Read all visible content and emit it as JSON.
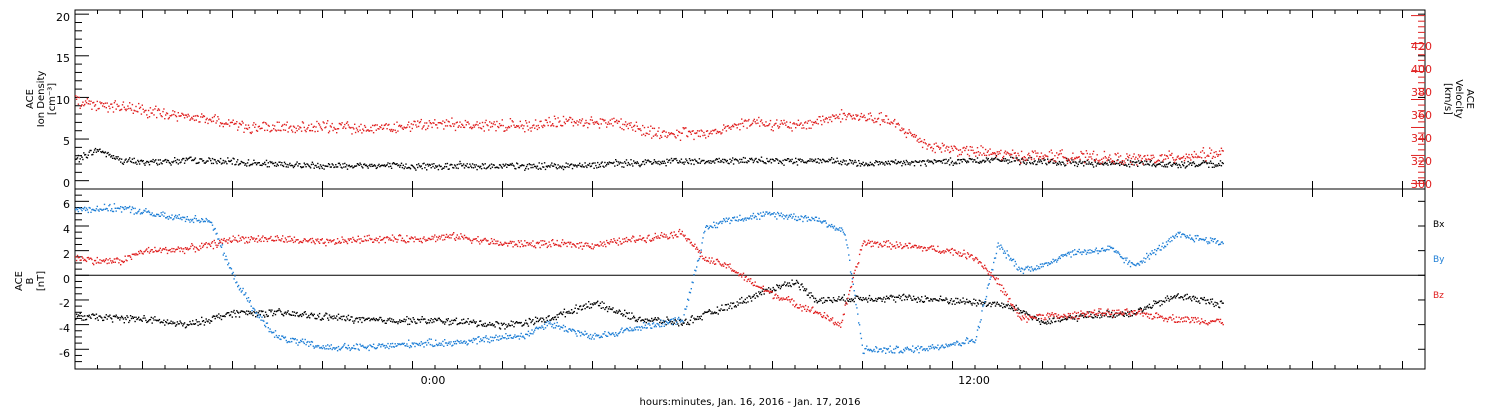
{
  "colors": {
    "black": "#000000",
    "red": "#e02020",
    "blue": "#1f7fd6"
  },
  "chart_data": [
    {
      "type": "scatter",
      "panel": "top",
      "ylabel": [
        "ACE",
        "Ion Density",
        "[cm⁻³]"
      ],
      "ylim": [
        -1,
        20.5
      ],
      "yticks": [
        "0",
        "5",
        "10",
        "15",
        "20"
      ],
      "ylabel_right": [
        "ACE",
        "Velocity",
        "[km/s]"
      ],
      "ylim_right": [
        296,
        424
      ],
      "yticks_right": [
        "300",
        "320",
        "340",
        "360",
        "380",
        "400",
        "420"
      ],
      "series": [
        {
          "name": "",
          "color": "black",
          "axis": "left",
          "keypoints": [
            [
              -9.5,
              2.6
            ],
            [
              -9,
              3.8
            ],
            [
              -8.5,
              2.5
            ],
            [
              -8,
              2.3
            ],
            [
              -7,
              2.5
            ],
            [
              -6,
              2.3
            ],
            [
              -5,
              2.0
            ],
            [
              -4,
              1.9
            ],
            [
              -3,
              1.9
            ],
            [
              -2,
              1.8
            ],
            [
              -1,
              1.9
            ],
            [
              0,
              1.8
            ],
            [
              1,
              1.8
            ],
            [
              2,
              2.0
            ],
            [
              3,
              2.2
            ],
            [
              4,
              2.4
            ],
            [
              5,
              2.5
            ],
            [
              6,
              2.4
            ],
            [
              7,
              2.5
            ],
            [
              8,
              2.1
            ],
            [
              9,
              2.2
            ],
            [
              10,
              2.4
            ],
            [
              11,
              2.6
            ],
            [
              12,
              2.3
            ],
            [
              13,
              2.2
            ],
            [
              14,
              2.2
            ],
            [
              15,
              2.0
            ],
            [
              16,
              2.1
            ]
          ]
        },
        {
          "name": "",
          "color": "red",
          "axis": "right",
          "keypoints": [
            [
              -9.5,
              359
            ],
            [
              -8.5,
              355
            ],
            [
              -7.5,
              350
            ],
            [
              -6.5,
              346
            ],
            [
              -5.5,
              340
            ],
            [
              -4.5,
              340
            ],
            [
              -3.5,
              341
            ],
            [
              -2.5,
              340
            ],
            [
              -1.5,
              343
            ],
            [
              -0.5,
              342
            ],
            [
              0.5,
              342
            ],
            [
              1.5,
              345
            ],
            [
              2.5,
              344
            ],
            [
              3.5,
              336
            ],
            [
              4.5,
              336
            ],
            [
              5.5,
              345
            ],
            [
              6.5,
              341
            ],
            [
              7.5,
              349
            ],
            [
              8.5,
              346
            ],
            [
              9.5,
              327
            ],
            [
              10.5,
              323
            ],
            [
              11.5,
              320
            ],
            [
              12.5,
              320
            ],
            [
              13.5,
              318
            ],
            [
              14.5,
              318
            ],
            [
              15.5,
              321
            ],
            [
              16,
              322
            ]
          ]
        }
      ]
    },
    {
      "type": "scatter",
      "panel": "bottom",
      "ylabel": [
        "ACE",
        "B",
        "[nT]"
      ],
      "ylim": [
        -7.6,
        7.0
      ],
      "yticks": [
        "6",
        "4",
        "2",
        "0",
        "-2",
        "-4",
        "-6"
      ],
      "zero_line": true,
      "legend": [
        "Bx",
        "By",
        "Bz"
      ],
      "series": [
        {
          "name": "Bx",
          "color": "black",
          "keypoints": [
            [
              -9.5,
              -3.3
            ],
            [
              -8,
              -3.5
            ],
            [
              -7,
              -4.0
            ],
            [
              -6,
              -3.0
            ],
            [
              -5,
              -3.0
            ],
            [
              -4,
              -3.3
            ],
            [
              -3,
              -3.6
            ],
            [
              -2,
              -3.6
            ],
            [
              -1,
              -3.7
            ],
            [
              0,
              -4.0
            ],
            [
              1,
              -3.5
            ],
            [
              2,
              -2.2
            ],
            [
              3,
              -3.5
            ],
            [
              4,
              -3.8
            ],
            [
              5,
              -2.5
            ],
            [
              6,
              -1.0
            ],
            [
              6.5,
              -0.5
            ],
            [
              7,
              -2.0
            ],
            [
              8,
              -1.8
            ],
            [
              9,
              -1.8
            ],
            [
              10,
              -2.0
            ],
            [
              11,
              -2.3
            ],
            [
              11.5,
              -2.8
            ],
            [
              12,
              -3.8
            ],
            [
              13,
              -3.2
            ],
            [
              14,
              -3.0
            ],
            [
              15,
              -1.6
            ],
            [
              16,
              -2.3
            ]
          ]
        },
        {
          "name": "By",
          "color": "blue",
          "keypoints": [
            [
              -9.5,
              5.4
            ],
            [
              -8.5,
              5.5
            ],
            [
              -8,
              5.2
            ],
            [
              -7.5,
              4.8
            ],
            [
              -6.5,
              4.5
            ],
            [
              -6,
              0
            ],
            [
              -5.5,
              -3.0
            ],
            [
              -5,
              -5.0
            ],
            [
              -4,
              -5.8
            ],
            [
              -3,
              -5.8
            ],
            [
              -2,
              -5.5
            ],
            [
              -1,
              -5.4
            ],
            [
              0,
              -5.0
            ],
            [
              0.5,
              -4.8
            ],
            [
              1,
              -3.8
            ],
            [
              2,
              -5.0
            ],
            [
              3,
              -4.2
            ],
            [
              4,
              -3.5
            ],
            [
              4.5,
              3.8
            ],
            [
              5,
              4.6
            ],
            [
              6,
              5.0
            ],
            [
              7,
              4.6
            ],
            [
              7.6,
              3.5
            ],
            [
              8,
              -6.0
            ],
            [
              9,
              -6.0
            ],
            [
              9.5,
              -5.8
            ],
            [
              10.5,
              -5.2
            ],
            [
              11,
              2.5
            ],
            [
              11.5,
              0.5
            ],
            [
              12,
              0.8
            ],
            [
              12.5,
              1.8
            ],
            [
              13,
              2.0
            ],
            [
              13.5,
              2.2
            ],
            [
              14,
              0.8
            ],
            [
              14.5,
              2.0
            ],
            [
              15,
              3.3
            ],
            [
              16,
              2.7
            ]
          ]
        },
        {
          "name": "Bz",
          "color": "red",
          "keypoints": [
            [
              -9.5,
              1.5
            ],
            [
              -9,
              1.2
            ],
            [
              -8.5,
              1.2
            ],
            [
              -8,
              2.0
            ],
            [
              -7,
              2.2
            ],
            [
              -6.5,
              2.5
            ],
            [
              -6,
              3.0
            ],
            [
              -5,
              3.0
            ],
            [
              -4,
              2.7
            ],
            [
              -3,
              3.0
            ],
            [
              -2,
              3.0
            ],
            [
              -1,
              3.2
            ],
            [
              0,
              2.6
            ],
            [
              1,
              2.6
            ],
            [
              2,
              2.5
            ],
            [
              3,
              3.0
            ],
            [
              4,
              3.5
            ],
            [
              4.5,
              1.3
            ],
            [
              5,
              0.8
            ],
            [
              5.5,
              -0.5
            ],
            [
              6,
              -1.5
            ],
            [
              7,
              -3.0
            ],
            [
              7.5,
              -4.0
            ],
            [
              8,
              2.7
            ],
            [
              9,
              2.4
            ],
            [
              10,
              2.0
            ],
            [
              10.5,
              1.5
            ],
            [
              11,
              -0.5
            ],
            [
              11.5,
              -3.5
            ],
            [
              12,
              -3.2
            ],
            [
              12.5,
              -3.3
            ],
            [
              13,
              -3.0
            ],
            [
              14,
              -3.0
            ],
            [
              15,
              -3.5
            ],
            [
              16,
              -3.7
            ]
          ]
        }
      ]
    }
  ],
  "x_axis": {
    "xlim": [
      -9.5,
      20.5
    ],
    "major_labels": [
      {
        "x": 0,
        "label": "0:00"
      },
      {
        "x": 12,
        "label": "12:00"
      }
    ],
    "major_ticks": [
      -8,
      -6,
      -4,
      -2,
      0,
      2,
      4,
      6,
      8,
      10,
      12,
      14,
      16,
      18,
      20
    ],
    "title": "hours:minutes, Jan. 16, 2016 - Jan. 17, 2016"
  }
}
